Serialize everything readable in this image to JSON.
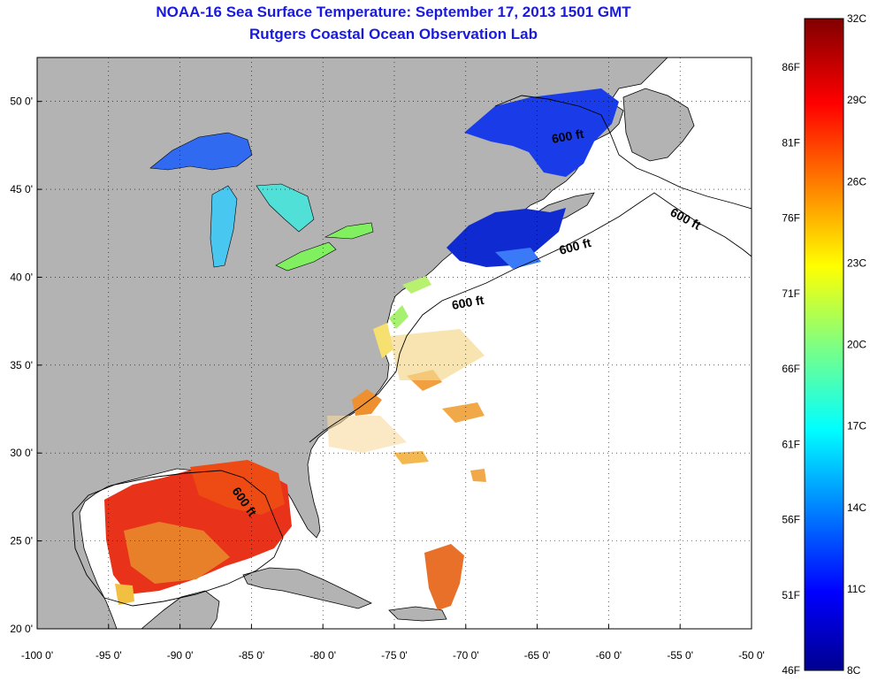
{
  "title": "NOAA-16 Sea Surface Temperature:  September 17, 2013 1501 GMT",
  "subtitle": "Rutgers Coastal Ocean Observation Lab",
  "map": {
    "lon_range": [
      -100,
      -50
    ],
    "lat_range": [
      20,
      52.5
    ],
    "x_ticks": [
      "-100 0'",
      "-95 0'",
      "-90 0'",
      "-85 0'",
      "-80 0'",
      "-75 0'",
      "-70 0'",
      "-65 0'",
      "-60 0'",
      "-55 0'",
      "-50 0'"
    ],
    "y_ticks": [
      "20 0'",
      "25 0'",
      "30 0'",
      "35 0'",
      "40 0'",
      "45 0'",
      "50 0'"
    ],
    "grid": true,
    "land_color": "#b3b3b3",
    "ocean_color": "#ffffff",
    "isobath_label": "600 ft"
  },
  "colorbar": {
    "celsius": [
      "32C",
      "29C",
      "26C",
      "23C",
      "20C",
      "17C",
      "14C",
      "11C",
      "8C"
    ],
    "fahrenheit": [
      "86F",
      "81F",
      "76F",
      "71F",
      "66F",
      "61F",
      "56F",
      "51F",
      "46F"
    ],
    "range_c": [
      8,
      32
    ]
  }
}
